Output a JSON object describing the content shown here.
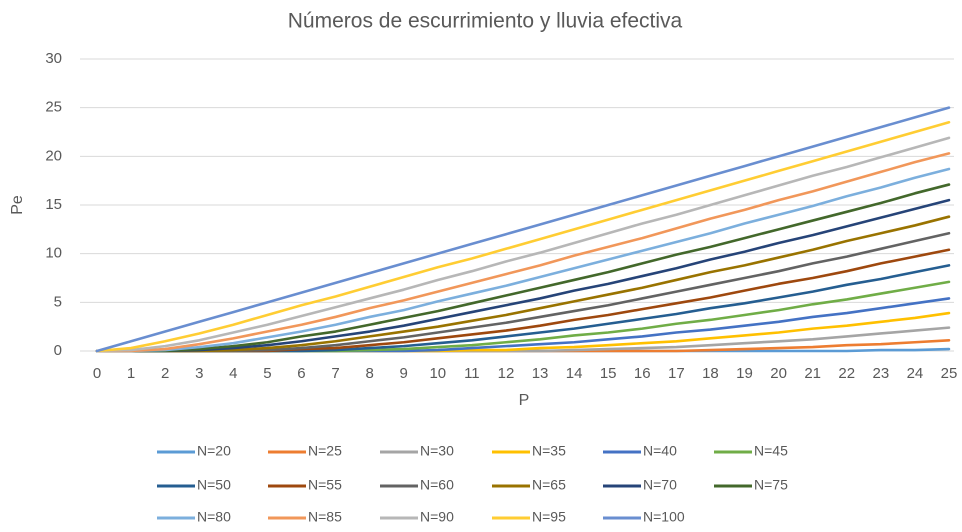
{
  "chart_data": {
    "type": "line",
    "title": "Números de escurrimiento y lluvia efectiva",
    "xlabel": "P",
    "ylabel": "Pe",
    "x": [
      0,
      1,
      2,
      3,
      4,
      5,
      6,
      7,
      8,
      9,
      10,
      11,
      12,
      13,
      14,
      15,
      16,
      17,
      18,
      19,
      20,
      21,
      22,
      23,
      24,
      25
    ],
    "xlim": [
      0,
      25
    ],
    "xticks": [
      0,
      1,
      2,
      3,
      4,
      5,
      6,
      7,
      8,
      9,
      10,
      11,
      12,
      13,
      14,
      15,
      16,
      17,
      18,
      19,
      20,
      21,
      22,
      23,
      24,
      25
    ],
    "ylim": [
      0,
      30
    ],
    "yticks": [
      0,
      5,
      10,
      15,
      20,
      25,
      30
    ],
    "grid": true,
    "legend": "bottom",
    "series": [
      {
        "name": "N=20",
        "color": "#5b9bd5",
        "values": [
          0,
          0,
          0,
          0,
          0,
          0,
          0,
          0,
          0,
          0,
          0,
          0,
          0,
          0,
          0,
          0,
          0,
          0,
          0,
          0,
          0,
          0,
          0,
          0.1,
          0.1,
          0.2
        ]
      },
      {
        "name": "N=25",
        "color": "#ed7d31",
        "values": [
          0,
          0,
          0,
          0,
          0,
          0,
          0,
          0,
          0,
          0,
          0,
          0,
          0,
          0,
          0,
          0,
          0,
          0,
          0.1,
          0.2,
          0.3,
          0.4,
          0.6,
          0.7,
          0.9,
          1.1
        ]
      },
      {
        "name": "N=30",
        "color": "#a5a5a5",
        "values": [
          0,
          0,
          0,
          0,
          0,
          0,
          0,
          0,
          0,
          0,
          0,
          0,
          0,
          0,
          0.1,
          0.2,
          0.3,
          0.4,
          0.6,
          0.8,
          1.0,
          1.2,
          1.5,
          1.8,
          2.1,
          2.4
        ]
      },
      {
        "name": "N=35",
        "color": "#ffc000",
        "values": [
          0,
          0,
          0,
          0,
          0,
          0,
          0,
          0,
          0,
          0,
          0,
          0.1,
          0.1,
          0.3,
          0.4,
          0.6,
          0.8,
          1.0,
          1.3,
          1.6,
          1.9,
          2.3,
          2.6,
          3.0,
          3.4,
          3.9
        ]
      },
      {
        "name": "N=40",
        "color": "#4472c4",
        "values": [
          0,
          0,
          0,
          0,
          0,
          0,
          0,
          0,
          0,
          0,
          0.1,
          0.3,
          0.5,
          0.7,
          0.9,
          1.2,
          1.5,
          1.9,
          2.2,
          2.6,
          3.0,
          3.5,
          3.9,
          4.4,
          4.9,
          5.4
        ]
      },
      {
        "name": "N=45",
        "color": "#70ad47",
        "values": [
          0,
          0,
          0,
          0,
          0,
          0,
          0,
          0,
          0.1,
          0.2,
          0.4,
          0.6,
          0.9,
          1.2,
          1.6,
          1.9,
          2.3,
          2.8,
          3.2,
          3.7,
          4.2,
          4.8,
          5.3,
          5.9,
          6.5,
          7.1
        ]
      },
      {
        "name": "N=50",
        "color": "#255e91",
        "values": [
          0,
          0,
          0,
          0,
          0,
          0,
          0,
          0.1,
          0.3,
          0.5,
          0.8,
          1.1,
          1.5,
          1.9,
          2.3,
          2.8,
          3.3,
          3.8,
          4.4,
          4.9,
          5.5,
          6.1,
          6.8,
          7.4,
          8.1,
          8.8
        ]
      },
      {
        "name": "N=55",
        "color": "#9e480e",
        "values": [
          0,
          0,
          0,
          0,
          0,
          0,
          0.2,
          0.3,
          0.6,
          0.9,
          1.3,
          1.7,
          2.1,
          2.6,
          3.2,
          3.7,
          4.3,
          4.9,
          5.5,
          6.2,
          6.9,
          7.5,
          8.2,
          9.0,
          9.7,
          10.4
        ]
      },
      {
        "name": "N=60",
        "color": "#636363",
        "values": [
          0,
          0,
          0,
          0,
          0,
          0.1,
          0.3,
          0.6,
          1.0,
          1.4,
          1.9,
          2.4,
          2.9,
          3.5,
          4.1,
          4.7,
          5.4,
          6.1,
          6.8,
          7.5,
          8.2,
          9.0,
          9.7,
          10.5,
          11.3,
          12.1
        ]
      },
      {
        "name": "N=65",
        "color": "#997300",
        "values": [
          0,
          0,
          0,
          0,
          0.1,
          0.3,
          0.6,
          1.0,
          1.5,
          2.0,
          2.5,
          3.1,
          3.7,
          4.4,
          5.1,
          5.8,
          6.5,
          7.3,
          8.1,
          8.8,
          9.6,
          10.4,
          11.3,
          12.1,
          12.9,
          13.8
        ]
      },
      {
        "name": "N=70",
        "color": "#264478",
        "values": [
          0,
          0,
          0,
          0.1,
          0.3,
          0.6,
          1.0,
          1.5,
          2.0,
          2.6,
          3.3,
          4.0,
          4.7,
          5.4,
          6.2,
          6.9,
          7.7,
          8.5,
          9.4,
          10.2,
          11.1,
          11.9,
          12.8,
          13.7,
          14.6,
          15.5
        ]
      },
      {
        "name": "N=75",
        "color": "#43682b",
        "values": [
          0,
          0,
          0,
          0.2,
          0.5,
          0.9,
          1.5,
          2.0,
          2.7,
          3.4,
          4.1,
          4.9,
          5.7,
          6.5,
          7.3,
          8.1,
          9.0,
          9.9,
          10.7,
          11.6,
          12.5,
          13.4,
          14.3,
          15.2,
          16.2,
          17.1
        ]
      },
      {
        "name": "N=80",
        "color": "#7cafdd",
        "values": [
          0,
          0,
          0.1,
          0.4,
          0.8,
          1.4,
          2.0,
          2.7,
          3.5,
          4.2,
          5.1,
          5.9,
          6.7,
          7.6,
          8.5,
          9.4,
          10.3,
          11.2,
          12.1,
          13.1,
          14.0,
          14.9,
          15.9,
          16.8,
          17.8,
          18.7
        ]
      },
      {
        "name": "N=85",
        "color": "#f1975a",
        "values": [
          0,
          0,
          0.2,
          0.7,
          1.3,
          2.0,
          2.7,
          3.5,
          4.4,
          5.2,
          6.1,
          7.0,
          7.9,
          8.8,
          9.8,
          10.7,
          11.6,
          12.6,
          13.6,
          14.5,
          15.5,
          16.4,
          17.4,
          18.4,
          19.4,
          20.3
        ]
      },
      {
        "name": "N=90",
        "color": "#b7b7b7",
        "values": [
          0,
          0.1,
          0.5,
          1.1,
          1.9,
          2.7,
          3.6,
          4.5,
          5.4,
          6.3,
          7.3,
          8.2,
          9.2,
          10.1,
          11.1,
          12.1,
          13.1,
          14.0,
          15.0,
          16.0,
          17.0,
          18.0,
          18.9,
          19.9,
          20.9,
          21.9
        ]
      },
      {
        "name": "N=95",
        "color": "#ffcd33",
        "values": [
          0,
          0.3,
          1.0,
          1.8,
          2.7,
          3.7,
          4.7,
          5.6,
          6.6,
          7.6,
          8.6,
          9.5,
          10.5,
          11.5,
          12.5,
          13.5,
          14.5,
          15.5,
          16.5,
          17.5,
          18.5,
          19.5,
          20.5,
          21.5,
          22.5,
          23.5
        ]
      },
      {
        "name": "N=100",
        "color": "#698ed0",
        "values": [
          0,
          1,
          2,
          3,
          4,
          5,
          6,
          7,
          8,
          9,
          10,
          11,
          12,
          13,
          14,
          15,
          16,
          17,
          18,
          19,
          20,
          21,
          22,
          23,
          24,
          25
        ]
      }
    ]
  }
}
